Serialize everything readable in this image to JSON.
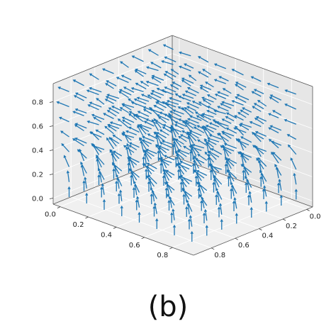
{
  "panel_label": "(b)",
  "chart_data": {
    "type": "quiver3d",
    "title": "",
    "xlabel": "",
    "ylabel": "",
    "zlabel": "",
    "x_ticks": [
      "0.0",
      "0.2",
      "0.4",
      "0.6",
      "0.8"
    ],
    "y_ticks": [
      "0.0",
      "0.2",
      "0.4",
      "0.6",
      "0.8"
    ],
    "z_ticks": [
      "0.0",
      "0.2",
      "0.4",
      "0.6",
      "0.8"
    ],
    "xlim": [
      -0.05,
      0.95
    ],
    "ylim": [
      -0.05,
      0.95
    ],
    "zlim": [
      -0.05,
      0.95
    ],
    "grid_points_per_axis": 8,
    "grid_values": [
      0.0,
      0.125,
      0.25,
      0.375,
      0.5,
      0.625,
      0.75,
      0.875
    ],
    "arrow_length": 0.09,
    "field": "arrows point vertically upward near the bottom layers and lie horizontally pointing leftward in the upper layers, with random perturbation",
    "color": "#1f77b4",
    "grid": true,
    "pane_color": "#f2f2f2"
  }
}
